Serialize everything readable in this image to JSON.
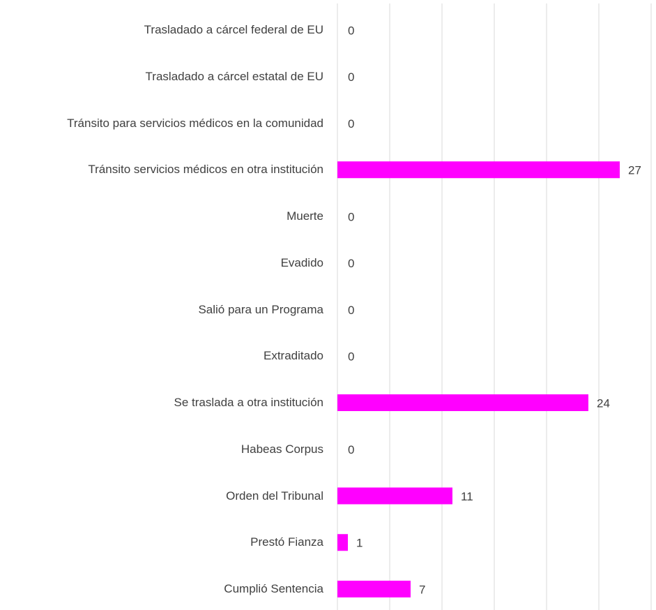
{
  "chart_data": {
    "type": "barh",
    "categories": [
      "Trasladado a cárcel federal de EU",
      "Trasladado a cárcel estatal de EU",
      "Tránsito para servicios médicos en la comunidad",
      "Tránsito servicios médicos en otra institución",
      "Muerte",
      "Evadido",
      "Salió para un Programa",
      "Extraditado",
      "Se traslada a otra institución",
      "Habeas Corpus",
      "Orden del Tribunal",
      "Prestó Fianza",
      "Cumplió Sentencia"
    ],
    "values": [
      0,
      0,
      0,
      27,
      0,
      0,
      0,
      0,
      24,
      0,
      11,
      1,
      7
    ],
    "color": "#ff00ff",
    "xlim": [
      0,
      30
    ],
    "xticks": [
      0,
      5,
      10,
      15,
      20,
      25,
      30
    ],
    "grid": true
  }
}
